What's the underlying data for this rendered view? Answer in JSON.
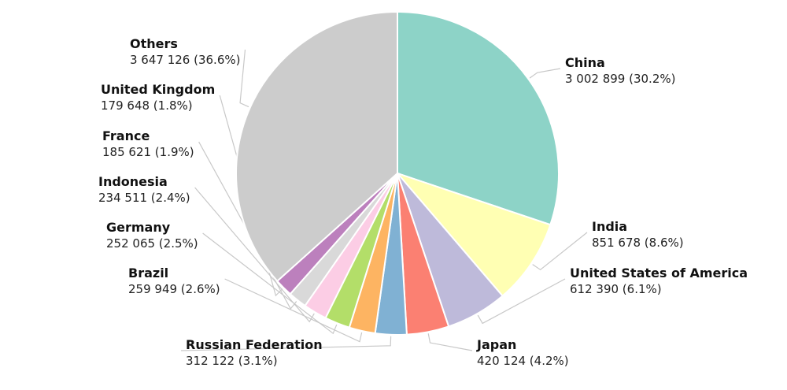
{
  "chart_data": {
    "type": "pie",
    "categories": [
      "China",
      "India",
      "United States of America",
      "Japan",
      "Russian Federation",
      "Brazil",
      "Germany",
      "Indonesia",
      "France",
      "United Kingdom",
      "Others"
    ],
    "values": [
      3002899,
      851678,
      612390,
      420124,
      312122,
      259949,
      252065,
      234511,
      185621,
      179648,
      3647126
    ],
    "value_labels": [
      "3 002 899 (30.2%)",
      "851 678 (8.6%)",
      "612 390 (6.1%)",
      "420 124 (4.2%)",
      "312 122 (3.1%)",
      "259 949 (2.6%)",
      "252 065 (2.5%)",
      "234 511 (2.4%)",
      "185 621 (1.9%)",
      "179 648 (1.8%)",
      "3 647 126 (36.6%)"
    ],
    "colors": [
      "#8dd3c7",
      "#ffffb3",
      "#bebada",
      "#fb8072",
      "#80b1d3",
      "#fdb462",
      "#b3de69",
      "#fccde5",
      "#d9d9d9",
      "#bc80bd",
      "#cccccc"
    ]
  }
}
